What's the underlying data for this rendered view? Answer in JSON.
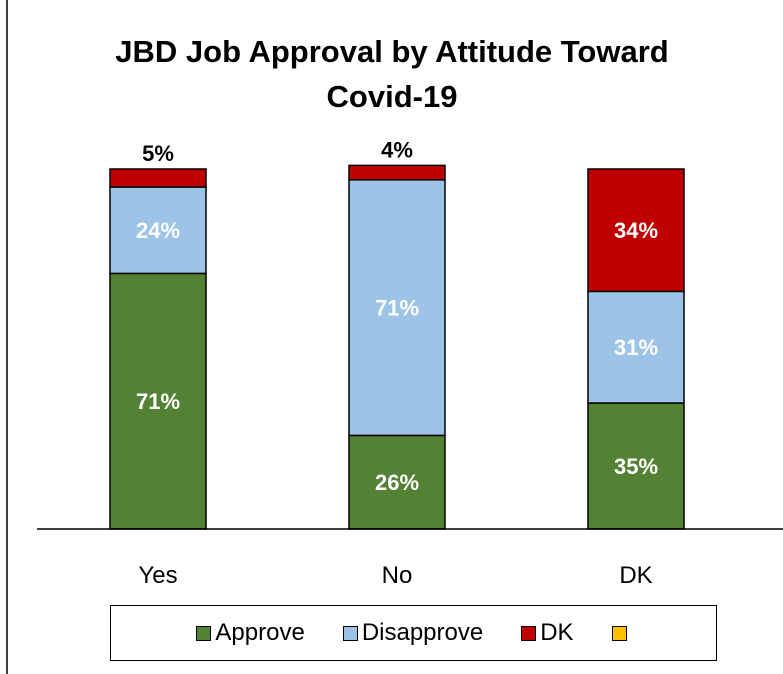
{
  "chart_data": {
    "type": "bar",
    "stacked": true,
    "title": "JBD Job Approval by Attitude Toward Covid-19",
    "title_lines": [
      "JBD Job Approval by Attitude Toward",
      "Covid-19"
    ],
    "categories": [
      "Yes",
      "No",
      "DK"
    ],
    "series": [
      {
        "name": "Approve",
        "values": [
          71,
          26,
          35
        ],
        "color": "#548235",
        "label_color": "#ffffff"
      },
      {
        "name": "Disapprove",
        "values": [
          24,
          71,
          31
        ],
        "color": "#9dc3e6",
        "label_color": "#ffffff"
      },
      {
        "name": "DK",
        "values": [
          5,
          4,
          34
        ],
        "color": "#c00000",
        "label_color": "#ffffff"
      },
      {
        "name": "",
        "values": [
          0,
          0,
          0
        ],
        "color": "#ffc000",
        "label_color": "#000000"
      }
    ],
    "data_labels": [
      [
        "71%",
        "26%",
        "35%"
      ],
      [
        "24%",
        "71%",
        "31%"
      ],
      [
        "5%",
        "4%",
        "34%"
      ]
    ],
    "ylim": [
      0,
      100
    ],
    "grid": false,
    "legend_position": "bottom"
  }
}
